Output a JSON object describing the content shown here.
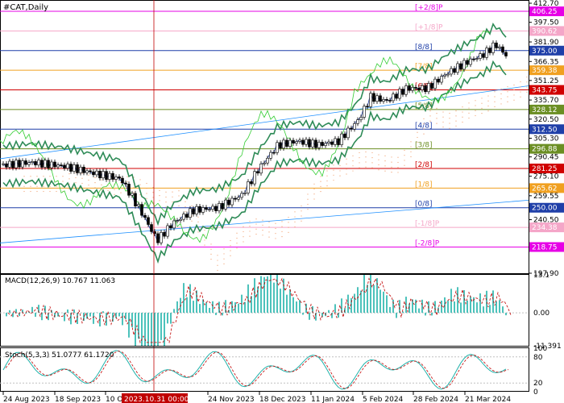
{
  "chart_data": {
    "type": "candlestick",
    "title": "#CAT,Daily",
    "price_ticks": [
      "412.70",
      "397.50",
      "381.90",
      "366.35",
      "351.25",
      "335.70",
      "320.50",
      "305.30",
      "290.45",
      "275.10",
      "259.55",
      "240.50",
      "197.90"
    ],
    "price_range": [
      197.9,
      412.7
    ],
    "murrey_levels": [
      {
        "label": "[+2/8]P",
        "value": 406.25,
        "color": "#e600e6"
      },
      {
        "label": "[+1/8]P",
        "value": 390.62,
        "color": "#f4a6c8"
      },
      {
        "label": "[8/8]",
        "value": 375.0,
        "color": "#1f3fa8"
      },
      {
        "label": "[7/8]",
        "value": 359.38,
        "color": "#f0a020"
      },
      {
        "label": "[6/8]",
        "value": 343.75,
        "color": "#d00000"
      },
      {
        "label": "[5/8]",
        "value": 328.12,
        "color": "#6b8e23"
      },
      {
        "label": "[4/8]",
        "value": 312.5,
        "color": "#1f3fa8"
      },
      {
        "label": "[3/8]",
        "value": 296.88,
        "color": "#6b8e23"
      },
      {
        "label": "[2/8]",
        "value": 281.25,
        "color": "#d00000"
      },
      {
        "label": "[1/8]",
        "value": 265.62,
        "color": "#f0a020"
      },
      {
        "label": "[0/8]",
        "value": 250.0,
        "color": "#1f3fa8"
      },
      {
        "label": "[-1/8]P",
        "value": 234.38,
        "color": "#f4a6c8"
      },
      {
        "label": "[-2/8]P",
        "value": 218.75,
        "color": "#e600e6"
      }
    ],
    "macd": {
      "label": "MACD(12,26,9) 10.767 11.063",
      "ticks": [
        "13.1",
        "0.00",
        "-11.391"
      ],
      "range": [
        -11.391,
        13.1
      ]
    },
    "stoch": {
      "label": "Stoch(5,3,3) 51.0777 61.1720",
      "ticks": [
        "100",
        "80",
        "20",
        "0"
      ],
      "range": [
        0,
        100
      ]
    },
    "date_labels": [
      "24 Aug 2023",
      "18 Sep 2023",
      "10 Oct 2023",
      "24 Nov 2023",
      "18 Dec 2023",
      "11 Jan 2024",
      "5 Feb 2024",
      "28 Feb 2024",
      "21 Mar 2024"
    ],
    "cursor_date": "2023.10.31 00:00",
    "colors": {
      "bg": "#ffffff",
      "grid": "#c0c0c0",
      "candle": "#000000"
    }
  }
}
